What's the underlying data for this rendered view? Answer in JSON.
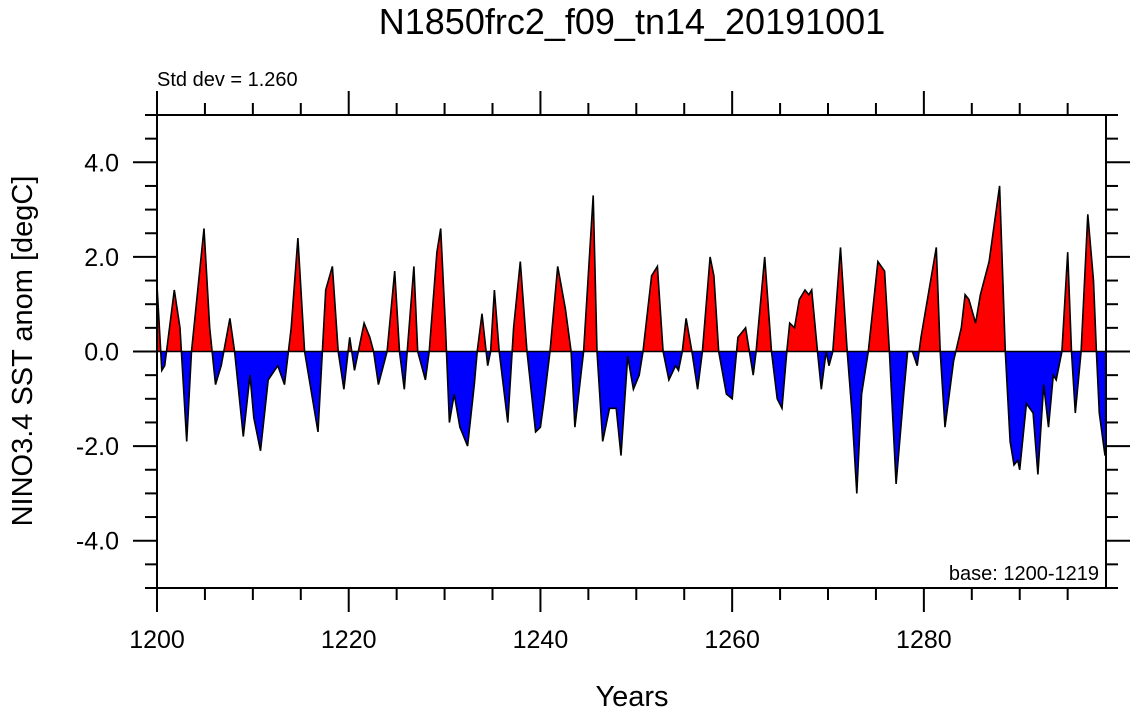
{
  "chart_data": {
    "type": "area",
    "title": "N1850frc2_f09_tn14_20191001",
    "left_annotation": "Std dev = 1.260",
    "right_annotation": "base: 1200-1219",
    "xlabel": "Years",
    "ylabel": "NINO3.4 SST anom [degC]",
    "xlim": [
      1200,
      1299
    ],
    "ylim": [
      -5,
      5
    ],
    "x_ticks": [
      1200,
      1220,
      1240,
      1260,
      1280
    ],
    "x_tick_labels": [
      "1200",
      "1220",
      "1240",
      "1260",
      "1280"
    ],
    "y_ticks": [
      4,
      2,
      0,
      -2,
      -4
    ],
    "y_tick_labels": [
      "4.0",
      "2.0",
      "0.0",
      "-2.0",
      "-4.0"
    ],
    "grid": false,
    "colors": {
      "positive": "#ff0000",
      "negative": "#0000ff",
      "line": "#000000"
    },
    "x": [
      1200.0,
      1200.5,
      1200.8,
      1201.8,
      1202.4,
      1203.1,
      1203.6,
      1204.9,
      1205.5,
      1206.1,
      1206.7,
      1207.6,
      1208.1,
      1209.0,
      1209.7,
      1210.1,
      1210.8,
      1211.6,
      1212.6,
      1213.3,
      1214.0,
      1214.7,
      1215.4,
      1216.8,
      1217.6,
      1218.3,
      1218.9,
      1219.5,
      1220.1,
      1220.6,
      1221.3,
      1221.6,
      1222.2,
      1222.6,
      1223.1,
      1224.0,
      1224.8,
      1225.3,
      1225.8,
      1226.1,
      1226.8,
      1227.2,
      1228.0,
      1228.4,
      1229.2,
      1229.6,
      1230.1,
      1230.5,
      1231.0,
      1231.6,
      1232.4,
      1233.1,
      1233.4,
      1233.9,
      1234.5,
      1234.8,
      1235.2,
      1235.7,
      1236.6,
      1237.2,
      1237.9,
      1238.6,
      1239.5,
      1240.0,
      1240.4,
      1241.0,
      1241.8,
      1242.6,
      1243.2,
      1243.6,
      1244.5,
      1245.5,
      1245.9,
      1246.5,
      1247.2,
      1247.9,
      1248.4,
      1249.1,
      1249.7,
      1250.3,
      1250.7,
      1251.6,
      1252.2,
      1252.8,
      1253.4,
      1254.1,
      1254.4,
      1254.8,
      1255.2,
      1255.8,
      1256.4,
      1256.9,
      1257.7,
      1258.1,
      1258.6,
      1259.4,
      1260.0,
      1260.6,
      1261.4,
      1261.8,
      1262.2,
      1262.5,
      1263.4,
      1264.1,
      1264.7,
      1265.2,
      1265.7,
      1266.0,
      1266.5,
      1267.0,
      1267.6,
      1268.0,
      1268.3,
      1268.9,
      1269.3,
      1269.8,
      1270.1,
      1270.5,
      1271.3,
      1272.0,
      1272.5,
      1273.0,
      1273.5,
      1274.2,
      1275.2,
      1275.9,
      1276.4,
      1277.1,
      1277.9,
      1278.3,
      1278.8,
      1279.3,
      1279.7,
      1281.3,
      1281.7,
      1282.2,
      1283.1,
      1283.9,
      1284.3,
      1284.7,
      1285.4,
      1285.9,
      1286.8,
      1287.9,
      1288.5,
      1289.0,
      1289.4,
      1289.8,
      1290.0,
      1290.7,
      1291.4,
      1291.9,
      1292.5,
      1293.0,
      1293.5,
      1293.8,
      1294.4,
      1295.0,
      1295.4,
      1295.8,
      1296.4,
      1297.1,
      1297.7,
      1298.0,
      1298.3,
      1298.9
    ],
    "y": [
      1.4,
      -0.4,
      -0.3,
      1.3,
      0.5,
      -1.9,
      0.0,
      2.6,
      0.5,
      -0.7,
      -0.3,
      0.7,
      0.0,
      -1.8,
      -0.5,
      -1.4,
      -2.1,
      -0.6,
      -0.3,
      -0.7,
      0.5,
      2.4,
      0.0,
      -1.7,
      1.3,
      1.8,
      0.0,
      -0.8,
      0.3,
      -0.4,
      0.3,
      0.6,
      0.3,
      0.0,
      -0.7,
      0.0,
      1.7,
      0.0,
      -0.8,
      0.0,
      1.8,
      0.0,
      -0.6,
      0.0,
      2.1,
      2.6,
      0.5,
      -1.5,
      -0.9,
      -1.6,
      -2.0,
      -0.7,
      0.0,
      0.8,
      -0.3,
      0.0,
      1.3,
      0.0,
      -1.5,
      0.5,
      1.9,
      0.0,
      -1.7,
      -1.6,
      -1.0,
      0.0,
      1.8,
      0.9,
      0.0,
      -1.6,
      0.0,
      3.3,
      0.0,
      -1.9,
      -1.2,
      -1.2,
      -2.2,
      -0.1,
      -0.8,
      -0.5,
      0.0,
      1.6,
      1.8,
      0.0,
      -0.6,
      -0.3,
      -0.4,
      0.0,
      0.7,
      0.0,
      -0.8,
      0.0,
      2.0,
      1.6,
      0.0,
      -0.9,
      -1.0,
      0.3,
      0.5,
      0.0,
      -0.5,
      0.0,
      2.0,
      0.0,
      -1.0,
      -1.2,
      0.0,
      0.6,
      0.5,
      1.1,
      1.3,
      1.2,
      1.3,
      0.0,
      -0.8,
      0.0,
      -0.3,
      0.0,
      2.2,
      0.0,
      -1.3,
      -3.0,
      -0.9,
      0.0,
      1.9,
      1.7,
      0.0,
      -2.8,
      -0.9,
      0.0,
      0.0,
      -0.3,
      0.3,
      2.2,
      0.0,
      -1.6,
      -0.2,
      0.5,
      1.2,
      1.1,
      0.6,
      1.2,
      1.9,
      3.5,
      0.0,
      -1.9,
      -2.4,
      -2.3,
      -2.5,
      -1.1,
      -1.3,
      -2.6,
      -0.7,
      -1.6,
      -0.5,
      -0.6,
      0.0,
      2.1,
      0.0,
      -1.3,
      0.0,
      2.9,
      1.5,
      0.0,
      -1.3,
      -2.2
    ]
  }
}
